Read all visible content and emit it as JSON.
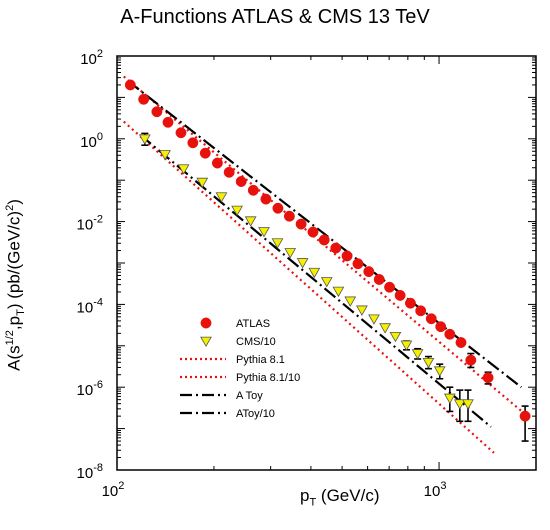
{
  "chart_data": {
    "type": "scatter",
    "title": "A-Functions ATLAS & CMS 13 TeV",
    "xlabel": {
      "main": "p",
      "sub": "T",
      "unit": " (GeV/c)"
    },
    "ylabel": {
      "pre": "A(s",
      "sup1": "1/2",
      "mid": ",p",
      "sub": "T",
      "post": ") (pb/(GeV/c)",
      "sup2": "2",
      "end": ")"
    },
    "x_scale": "log",
    "y_scale": "log",
    "xlim": [
      100,
      2000
    ],
    "ylim": [
      1e-08,
      100
    ],
    "x_ticks": [
      {
        "value": 100,
        "base": "10",
        "exp": "2"
      },
      {
        "value": 1000,
        "base": "10",
        "exp": "3"
      }
    ],
    "y_ticks": [
      {
        "value": 100,
        "base": "10",
        "exp": "2"
      },
      {
        "value": 1,
        "base": "10",
        "exp": "0"
      },
      {
        "value": 0.01,
        "base": "10",
        "exp": "-2"
      },
      {
        "value": 0.0001,
        "base": "10",
        "exp": "-4"
      },
      {
        "value": 1e-06,
        "base": "10",
        "exp": "-6"
      },
      {
        "value": 1e-08,
        "base": "10",
        "exp": "-8"
      }
    ],
    "grid": false,
    "legend_position": "lower-left",
    "legend": [
      {
        "label": "ATLAS",
        "symbol": "circle",
        "color": "#e8120c"
      },
      {
        "label": "CMS/10",
        "symbol": "triangle-down",
        "color": "#f5f000"
      },
      {
        "label": "Pythia 8.1",
        "symbol": "dotted-line",
        "color": "#e8120c"
      },
      {
        "label": "Pythia 8.1/10",
        "symbol": "dotted-line",
        "color": "#e8120c"
      },
      {
        "label": "A Toy",
        "symbol": "dashdot-line",
        "color": "#000000"
      },
      {
        "label": "AToy/10",
        "symbol": "dashdot-line",
        "color": "#000000"
      }
    ],
    "series": [
      {
        "name": "ATLAS",
        "kind": "points",
        "marker": "circle",
        "color": "#e8120c",
        "points": [
          [
            110,
            20
          ],
          [
            121,
            9
          ],
          [
            133,
            4.5
          ],
          [
            144,
            2.5
          ],
          [
            158,
            1.4
          ],
          [
            172,
            0.8
          ],
          [
            188,
            0.45
          ],
          [
            205,
            0.26
          ],
          [
            223,
            0.155
          ],
          [
            243,
            0.093
          ],
          [
            265,
            0.057
          ],
          [
            290,
            0.035
          ],
          [
            316,
            0.021
          ],
          [
            343,
            0.0135
          ],
          [
            373,
            0.0087
          ],
          [
            406,
            0.0056
          ],
          [
            440,
            0.0036
          ],
          [
            478,
            0.0023
          ],
          [
            518,
            0.00148
          ],
          [
            560,
            0.00096
          ],
          [
            605,
            0.00062
          ],
          [
            652,
            0.0004
          ],
          [
            702,
            0.00026
          ],
          [
            757,
            0.000165
          ],
          [
            815,
            0.000107
          ],
          [
            877,
            7e-05
          ],
          [
            946,
            4.5e-05
          ],
          [
            1012,
            2.9e-05
          ],
          [
            1080,
            1.9e-05
          ],
          [
            1170,
            1.2e-05
          ],
          [
            1255,
            4.5e-06
          ],
          [
            1420,
            1.7e-06
          ],
          [
            1850,
            2e-07
          ]
        ],
        "errors": [
          null,
          null,
          null,
          null,
          null,
          null,
          null,
          null,
          null,
          null,
          null,
          null,
          null,
          null,
          null,
          null,
          null,
          null,
          null,
          null,
          null,
          null,
          null,
          null,
          null,
          null,
          null,
          null,
          null,
          null,
          [
            3e-06,
            6.5e-06
          ],
          [
            1.2e-06,
            2.3e-06
          ],
          [
            5e-08,
            3.5e-07
          ]
        ]
      },
      {
        "name": "CMS/10",
        "kind": "points",
        "marker": "triangle-down",
        "color": "#f5f000",
        "points": [
          [
            122,
            1.0
          ],
          [
            141,
            0.42
          ],
          [
            161,
            0.19
          ],
          [
            184,
            0.09
          ],
          [
            211,
            0.04
          ],
          [
            236,
            0.019
          ],
          [
            260,
            0.0105
          ],
          [
            286,
            0.0058
          ],
          [
            315,
            0.0031
          ],
          [
            345,
            0.0018
          ],
          [
            377,
            0.00103
          ],
          [
            410,
            0.0006
          ],
          [
            448,
            0.00036
          ],
          [
            487,
            0.00021
          ],
          [
            530,
            0.000122
          ],
          [
            576,
            7.4e-05
          ],
          [
            628,
            4.5e-05
          ],
          [
            680,
            2.75e-05
          ],
          [
            732,
            1.7e-05
          ],
          [
            792,
            1.05e-05
          ],
          [
            858,
            6.5e-06
          ],
          [
            927,
            4e-06
          ],
          [
            1005,
            2.5e-06
          ],
          [
            1080,
            5.5e-07
          ],
          [
            1160,
            4e-07
          ],
          [
            1230,
            4e-07
          ]
        ],
        "errors": [
          [
            0.7,
            1.35
          ],
          null,
          null,
          null,
          null,
          null,
          null,
          null,
          null,
          null,
          null,
          null,
          null,
          null,
          null,
          null,
          null,
          null,
          null,
          [
            8e-06,
            1.3e-05
          ],
          [
            4.8e-06,
            8.5e-06
          ],
          [
            2.8e-06,
            5.5e-06
          ],
          [
            1.6e-06,
            3.6e-06
          ],
          [
            2.6e-07,
            1e-06
          ],
          [
            1.5e-07,
            8.5e-07
          ],
          [
            1.5e-07,
            8.5e-07
          ]
        ]
      },
      {
        "name": "Pythia 8.1",
        "kind": "line",
        "style": "dotted",
        "color": "#e8120c",
        "points": [
          [
            105,
            32
          ],
          [
            1930,
            1.7e-07
          ]
        ]
      },
      {
        "name": "Pythia 8.1/10",
        "kind": "line",
        "style": "dotted",
        "color": "#e8120c",
        "points": [
          [
            105,
            2.6
          ],
          [
            1480,
            2.6e-08
          ]
        ]
      },
      {
        "name": "A Toy",
        "kind": "line",
        "style": "dashdot",
        "color": "#000000",
        "points": [
          [
            108,
            25
          ],
          [
            1800,
            1e-06
          ]
        ]
      },
      {
        "name": "AToy/10",
        "kind": "line",
        "style": "dashdot",
        "color": "#000000",
        "points": [
          [
            118,
            1.25
          ],
          [
            1450,
            1.1e-07
          ]
        ]
      }
    ]
  }
}
